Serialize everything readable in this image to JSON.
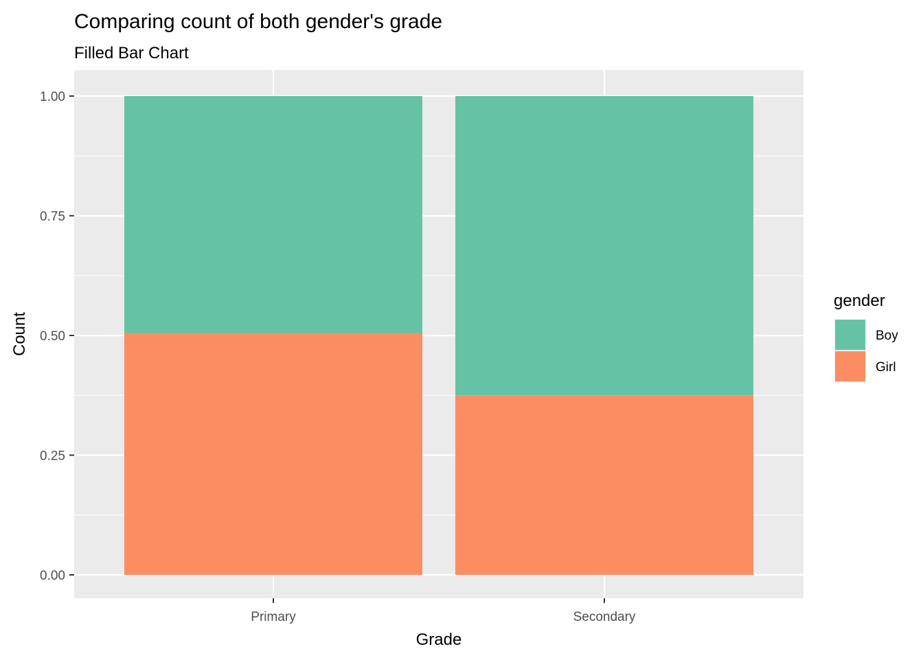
{
  "chart_data": {
    "type": "bar",
    "stacked": true,
    "position": "fill",
    "title": "Comparing count of both gender's grade",
    "subtitle": "Filled Bar Chart",
    "xlabel": "Grade",
    "ylabel": "Count",
    "categories": [
      "Primary",
      "Secondary"
    ],
    "ylim": [
      0,
      1
    ],
    "yticks": [
      "0.00",
      "0.25",
      "0.50",
      "0.75",
      "1.00"
    ],
    "ytick_values": [
      0,
      0.25,
      0.5,
      0.75,
      1.0
    ],
    "series": [
      {
        "name": "Girl",
        "values": [
          0.505,
          0.375
        ],
        "color": "#FC8D62"
      },
      {
        "name": "Boy",
        "values": [
          0.495,
          0.625
        ],
        "color": "#66C2A5"
      }
    ],
    "legend": {
      "title": "gender",
      "position": "right",
      "entries": [
        {
          "label": "Boy",
          "color": "#66C2A5"
        },
        {
          "label": "Girl",
          "color": "#FC8D62"
        }
      ]
    },
    "grid": true,
    "panel_background": "#EBEBEB",
    "grid_color": "#FFFFFF"
  }
}
